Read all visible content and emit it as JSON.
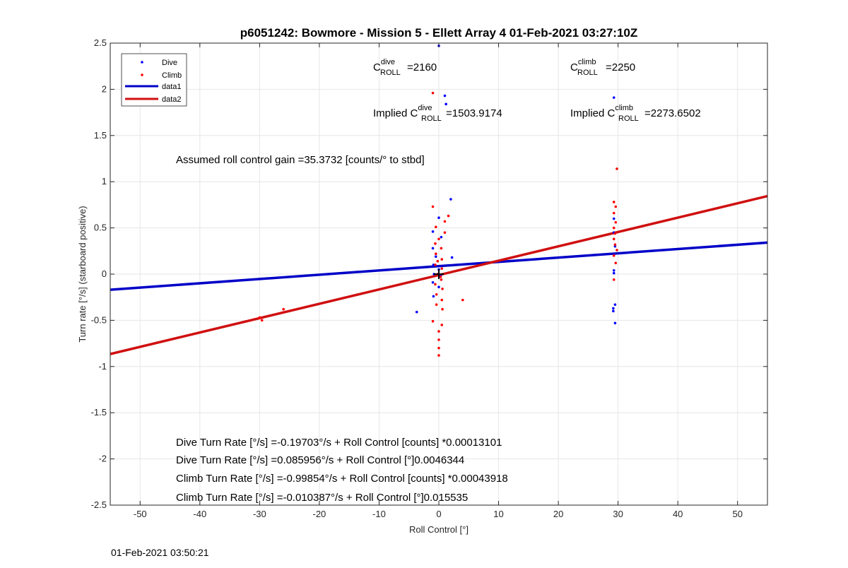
{
  "title": "p6051242: Bowmore - Mission 5 - Ellett Array 4 01-Feb-2021 03:27:10Z",
  "footer_timestamp": "01-Feb-2021 03:50:21",
  "annotations": {
    "c_dive_base": "C",
    "c_dive_sup": "dive",
    "c_dive_sub": "ROLL",
    "c_dive_value": "=2160",
    "c_climb_base": "C",
    "c_climb_sup": "climb",
    "c_climb_sub": "ROLL",
    "c_climb_value": "=2250",
    "implied_dive_prefix": "Implied C",
    "implied_dive_sup": "dive",
    "implied_dive_sub": "ROLL",
    "implied_dive_value": "=1503.9174",
    "implied_climb_prefix": "Implied C",
    "implied_climb_sup": "climb",
    "implied_climb_sub": "ROLL",
    "implied_climb_value": "=2273.6502",
    "gain": "Assumed roll control gain =35.3732 [counts/° to stbd]",
    "eq1": "Dive Turn Rate [°/s] =-0.19703°/s + Roll Control [counts] *0.00013101",
    "eq2": "Dive Turn Rate [°/s] =0.085956°/s + Roll Control [°]0.0046344",
    "eq3": "Climb Turn Rate [°/s] =-0.99854°/s + Roll Control [counts] *0.00043918",
    "eq4": "Climb Turn Rate [°/s] =-0.010387°/s + Roll Control [°]0.015535"
  },
  "colors": {
    "dive": "#0000ff",
    "climb": "#ff0000",
    "fit_dive": "#0000c8",
    "fit_climb": "#d01010",
    "grid": "#e6e6e6"
  },
  "chart_data": {
    "type": "scatter",
    "title": "p6051242: Bowmore - Mission 5 - Ellett Array 4 01-Feb-2021 03:27:10Z",
    "xlabel": "Roll Control [°]",
    "ylabel": "Turn rate [°/s] (starboard positive)",
    "xlim": [
      -55,
      55
    ],
    "ylim": [
      -2.5,
      2.5
    ],
    "xticks": [
      -50,
      -40,
      -30,
      -20,
      -10,
      0,
      10,
      20,
      30,
      40,
      50
    ],
    "yticks": [
      -2.5,
      -2,
      -1.5,
      -1,
      -0.5,
      0,
      0.5,
      1,
      1.5,
      2,
      2.5
    ],
    "grid": true,
    "legend_position": "top-left",
    "legend": [
      "Dive",
      "Climb",
      "data1",
      "data2"
    ],
    "series": [
      {
        "name": "Dive",
        "kind": "points",
        "points": [
          [
            0.0,
            2.47
          ],
          [
            1.0,
            1.93
          ],
          [
            1.2,
            1.84
          ],
          [
            2.0,
            0.81
          ],
          [
            0.0,
            0.61
          ],
          [
            -1.0,
            0.46
          ],
          [
            0.4,
            0.4
          ],
          [
            -1.0,
            0.28
          ],
          [
            -0.5,
            0.19
          ],
          [
            2.2,
            0.18
          ],
          [
            -0.9,
            0.1
          ],
          [
            0.0,
            0.05
          ],
          [
            -0.8,
            0.0
          ],
          [
            0.3,
            -0.02
          ],
          [
            -1.0,
            -0.09
          ],
          [
            0.0,
            -0.14
          ],
          [
            -0.9,
            -0.24
          ],
          [
            -3.7,
            -0.41
          ],
          [
            29.3,
            1.91
          ],
          [
            29.3,
            0.6
          ],
          [
            29.3,
            0.45
          ],
          [
            29.5,
            0.3
          ],
          [
            29.3,
            0.04
          ],
          [
            29.3,
            0.01
          ],
          [
            29.2,
            -0.37
          ],
          [
            29.5,
            -0.33
          ],
          [
            29.2,
            -0.4
          ],
          [
            29.5,
            -0.53
          ]
        ]
      },
      {
        "name": "Climb",
        "kind": "points",
        "points": [
          [
            -1.0,
            1.96
          ],
          [
            -1.0,
            0.73
          ],
          [
            1.6,
            0.63
          ],
          [
            1.0,
            0.57
          ],
          [
            -0.5,
            0.51
          ],
          [
            1.0,
            0.45
          ],
          [
            0.0,
            0.38
          ],
          [
            -0.6,
            0.33
          ],
          [
            0.4,
            0.28
          ],
          [
            -0.5,
            0.22
          ],
          [
            0.5,
            0.16
          ],
          [
            -0.6,
            0.1
          ],
          [
            0.5,
            0.06
          ],
          [
            -0.2,
            0.0
          ],
          [
            0.4,
            -0.06
          ],
          [
            -0.6,
            -0.11
          ],
          [
            0.6,
            -0.16
          ],
          [
            -0.4,
            -0.22
          ],
          [
            0.5,
            -0.28
          ],
          [
            -0.4,
            -0.33
          ],
          [
            0.6,
            -0.38
          ],
          [
            -1.0,
            -0.51
          ],
          [
            0.5,
            -0.55
          ],
          [
            0.0,
            -0.62
          ],
          [
            0.0,
            -0.71
          ],
          [
            0.0,
            -0.8
          ],
          [
            0.0,
            -0.88
          ],
          [
            4.0,
            -0.28
          ],
          [
            -0.2,
            0.14
          ],
          [
            0.3,
            -0.03
          ],
          [
            -30.0,
            -0.47
          ],
          [
            -29.6,
            -0.5
          ],
          [
            -26.0,
            -0.38
          ],
          [
            29.8,
            1.14
          ],
          [
            29.3,
            0.78
          ],
          [
            29.6,
            0.73
          ],
          [
            29.3,
            0.66
          ],
          [
            29.6,
            0.56
          ],
          [
            29.3,
            0.5
          ],
          [
            29.5,
            0.44
          ],
          [
            29.3,
            0.38
          ],
          [
            29.5,
            0.32
          ],
          [
            29.8,
            0.26
          ],
          [
            29.3,
            0.2
          ],
          [
            29.6,
            0.12
          ],
          [
            29.3,
            -0.06
          ]
        ]
      },
      {
        "name": "data1",
        "kind": "line",
        "points": [
          [
            -55,
            -0.1689
          ],
          [
            55,
            0.3408
          ]
        ]
      },
      {
        "name": "data2",
        "kind": "line",
        "points": [
          [
            -55,
            -0.8648
          ],
          [
            55,
            0.8441
          ]
        ]
      }
    ]
  }
}
